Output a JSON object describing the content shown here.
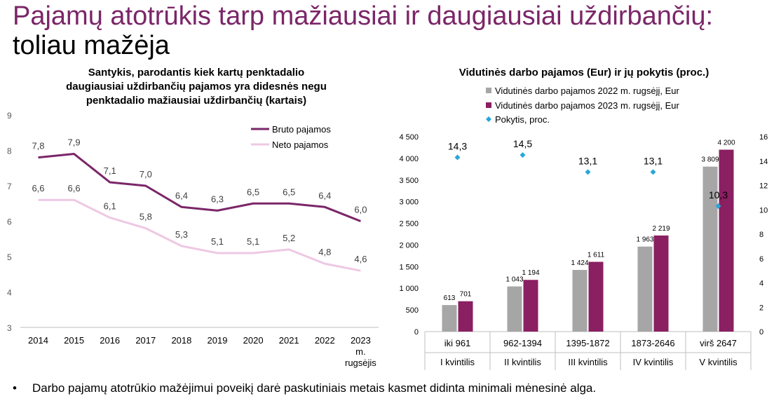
{
  "page": {
    "title_line1": "Pajamų atotrūkis tarp mažiausiai ir daugiausiai uždirbančių:",
    "title_line2": "toliau mažėja",
    "footnote": "Darbo pajamų atotrūkio mažėjimui poveikį darė paskutiniais metais kasmet didinta minimali mėnesinė alga.",
    "bullet": "•"
  },
  "colors": {
    "title_purple": "#7b2668",
    "bruto": "#7b2668",
    "neto": "#eec8e4",
    "bar_2022": "#a6a6a6",
    "bar_2023": "#8a1f62",
    "change_marker": "#29a6d8"
  },
  "chart_data": [
    {
      "type": "line",
      "title": "Santykis, parodantis kiek kartų penktadalio daugiausiai uždirbančių pajamos yra didesnės negu penktadalio mažiausiai uždirbančių (kartais)",
      "title_lines": [
        "Santykis, parodantis kiek kartų penktadalio",
        "daugiausiai uždirbančių pajamos yra didesnės negu",
        "penktadalio mažiausiai uždirbančių (kartais)"
      ],
      "categories": [
        "2014",
        "2015",
        "2016",
        "2017",
        "2018",
        "2019",
        "2020",
        "2021",
        "2022",
        "2023 m. rugsėjis"
      ],
      "category_lines": [
        [
          "2014"
        ],
        [
          "2015"
        ],
        [
          "2016"
        ],
        [
          "2017"
        ],
        [
          "2018"
        ],
        [
          "2019"
        ],
        [
          "2020"
        ],
        [
          "2021"
        ],
        [
          "2022"
        ],
        [
          "2023",
          "m.",
          "rugsėjis"
        ]
      ],
      "series": [
        {
          "name": "Bruto pajamos",
          "values": [
            7.8,
            7.9,
            7.1,
            7.0,
            6.4,
            6.3,
            6.5,
            6.5,
            6.4,
            6.0
          ],
          "labels": [
            "7,8",
            "7,9",
            "7,1",
            "7,0",
            "6,4",
            "6,3",
            "6,5",
            "6,5",
            "6,4",
            "6,0"
          ],
          "color": "#7b2668"
        },
        {
          "name": "Neto pajamos",
          "values": [
            6.6,
            6.6,
            6.1,
            5.8,
            5.3,
            5.1,
            5.1,
            5.2,
            4.8,
            4.6
          ],
          "labels": [
            "6,6",
            "6,6",
            "6,1",
            "5,8",
            "5,3",
            "5,1",
            "5,1",
            "5,2",
            "4,8",
            "4,6"
          ],
          "color": "#eec8e4"
        }
      ],
      "ylim": [
        3,
        9
      ],
      "yticks": [
        "3",
        "4",
        "5",
        "6",
        "7",
        "8",
        "9"
      ],
      "legend": "top-right",
      "grid": false
    },
    {
      "type": "bar",
      "title": "Vidutinės darbo pajamos (Eur) ir jų pokytis (proc.)",
      "categories": [
        "iki 961",
        "962-1394",
        "1395-1872",
        "1873-2646",
        "virš 2647"
      ],
      "group_labels": [
        "I kvintilis",
        "II kvintilis",
        "III kvintilis",
        "IV kvintilis",
        "V kvintilis"
      ],
      "series": [
        {
          "name": "Vidutinės darbo pajamos 2022 m. rugsėjį, Eur",
          "values": [
            613,
            1043,
            1424,
            1963,
            3809
          ],
          "labels": [
            "613",
            "1 043",
            "1 424",
            "1 963",
            "3 809"
          ],
          "color": "#a6a6a6"
        },
        {
          "name": "Vidutinės darbo pajamos 2023 m. rugsėjį, Eur",
          "values": [
            701,
            1194,
            1611,
            2219,
            4200
          ],
          "labels": [
            "701",
            "1 194",
            "1 611",
            "2 219",
            "4 200"
          ],
          "color": "#8a1f62"
        },
        {
          "name": "Pokytis, proc.",
          "values": [
            14.3,
            14.5,
            13.1,
            13.1,
            10.3
          ],
          "labels": [
            "14,3",
            "14,5",
            "13,1",
            "13,1",
            "10,3"
          ],
          "color": "#29a6d8",
          "axis": "right",
          "marker": "diamond"
        }
      ],
      "ylim": [
        0,
        4500
      ],
      "yticks": [
        "0",
        "500",
        "1 000",
        "1 500",
        "2 000",
        "2 500",
        "3 000",
        "3 500",
        "4 000",
        "4 500"
      ],
      "y2lim": [
        0,
        16
      ],
      "y2ticks": [
        "0",
        "2",
        "4",
        "6",
        "8",
        "10",
        "12",
        "14",
        "16"
      ],
      "legend": "top",
      "grid": false
    }
  ]
}
